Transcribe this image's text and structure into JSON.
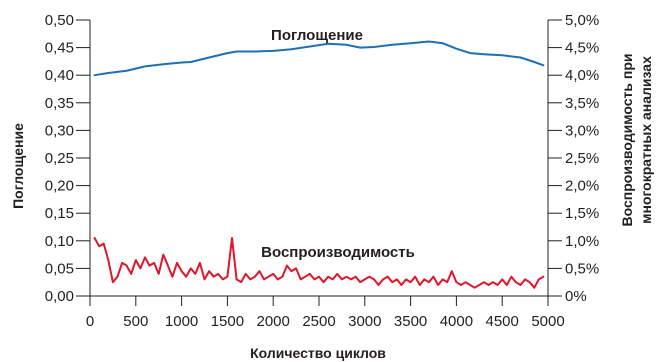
{
  "chart_data": {
    "type": "line",
    "xlabel": "Количество циклов",
    "ylabel_left": "Поглощение",
    "ylabel_right_lines": [
      "Воспроизводимость при",
      "многократных анализах"
    ],
    "xlim": [
      0,
      5000
    ],
    "ylim_left": [
      0,
      0.5
    ],
    "ylim_right": [
      0,
      5.0
    ],
    "x_ticks": [
      "0",
      "500",
      "1000",
      "1500",
      "2000",
      "2500",
      "3000",
      "3500",
      "4000",
      "4500",
      "5000"
    ],
    "y_ticks_left": [
      "0,00",
      "0,05",
      "0,10",
      "0,15",
      "0,20",
      "0,25",
      "0,30",
      "0,35",
      "0,40",
      "0,45",
      "0,50"
    ],
    "y_ticks_right": [
      "0%",
      "0,5%",
      "1,0%",
      "1,5%",
      "2,0%",
      "2,5%",
      "3,0%",
      "3,5%",
      "4,0%",
      "4,5%",
      "5,0%"
    ],
    "grid": false,
    "series": [
      {
        "name": "Поглощение",
        "axis": "left",
        "color": "#1f6fb5",
        "points": [
          [
            50,
            0.4
          ],
          [
            200,
            0.404
          ],
          [
            400,
            0.408
          ],
          [
            600,
            0.416
          ],
          [
            800,
            0.42
          ],
          [
            1000,
            0.423
          ],
          [
            1100,
            0.424
          ],
          [
            1300,
            0.432
          ],
          [
            1500,
            0.44
          ],
          [
            1600,
            0.443
          ],
          [
            1800,
            0.443
          ],
          [
            2000,
            0.444
          ],
          [
            2200,
            0.447
          ],
          [
            2400,
            0.452
          ],
          [
            2600,
            0.457
          ],
          [
            2800,
            0.455
          ],
          [
            2950,
            0.45
          ],
          [
            3100,
            0.451
          ],
          [
            3300,
            0.455
          ],
          [
            3500,
            0.458
          ],
          [
            3700,
            0.461
          ],
          [
            3850,
            0.458
          ],
          [
            4000,
            0.448
          ],
          [
            4150,
            0.44
          ],
          [
            4300,
            0.438
          ],
          [
            4500,
            0.436
          ],
          [
            4700,
            0.432
          ],
          [
            4850,
            0.424
          ],
          [
            4950,
            0.418
          ]
        ]
      },
      {
        "name": "Воспроизводимость",
        "axis": "right",
        "color": "#e0162b",
        "points": [
          [
            50,
            1.05
          ],
          [
            100,
            0.9
          ],
          [
            150,
            0.95
          ],
          [
            200,
            0.65
          ],
          [
            250,
            0.25
          ],
          [
            300,
            0.35
          ],
          [
            350,
            0.6
          ],
          [
            400,
            0.55
          ],
          [
            450,
            0.4
          ],
          [
            500,
            0.65
          ],
          [
            550,
            0.5
          ],
          [
            600,
            0.7
          ],
          [
            650,
            0.55
          ],
          [
            700,
            0.6
          ],
          [
            750,
            0.4
          ],
          [
            800,
            0.75
          ],
          [
            850,
            0.55
          ],
          [
            900,
            0.35
          ],
          [
            950,
            0.6
          ],
          [
            1000,
            0.45
          ],
          [
            1050,
            0.35
          ],
          [
            1100,
            0.5
          ],
          [
            1150,
            0.4
          ],
          [
            1200,
            0.6
          ],
          [
            1250,
            0.3
          ],
          [
            1300,
            0.45
          ],
          [
            1350,
            0.35
          ],
          [
            1400,
            0.4
          ],
          [
            1450,
            0.3
          ],
          [
            1500,
            0.35
          ],
          [
            1550,
            1.05
          ],
          [
            1600,
            0.3
          ],
          [
            1650,
            0.25
          ],
          [
            1700,
            0.4
          ],
          [
            1750,
            0.3
          ],
          [
            1800,
            0.35
          ],
          [
            1850,
            0.45
          ],
          [
            1900,
            0.3
          ],
          [
            1950,
            0.35
          ],
          [
            2000,
            0.4
          ],
          [
            2050,
            0.3
          ],
          [
            2100,
            0.35
          ],
          [
            2150,
            0.55
          ],
          [
            2200,
            0.45
          ],
          [
            2250,
            0.5
          ],
          [
            2300,
            0.3
          ],
          [
            2350,
            0.35
          ],
          [
            2400,
            0.4
          ],
          [
            2450,
            0.3
          ],
          [
            2500,
            0.35
          ],
          [
            2550,
            0.25
          ],
          [
            2600,
            0.35
          ],
          [
            2650,
            0.3
          ],
          [
            2700,
            0.4
          ],
          [
            2750,
            0.3
          ],
          [
            2800,
            0.35
          ],
          [
            2850,
            0.3
          ],
          [
            2900,
            0.35
          ],
          [
            2950,
            0.25
          ],
          [
            3000,
            0.3
          ],
          [
            3050,
            0.35
          ],
          [
            3100,
            0.3
          ],
          [
            3150,
            0.2
          ],
          [
            3200,
            0.3
          ],
          [
            3250,
            0.35
          ],
          [
            3300,
            0.25
          ],
          [
            3350,
            0.3
          ],
          [
            3400,
            0.2
          ],
          [
            3450,
            0.3
          ],
          [
            3500,
            0.25
          ],
          [
            3550,
            0.35
          ],
          [
            3600,
            0.2
          ],
          [
            3650,
            0.3
          ],
          [
            3700,
            0.25
          ],
          [
            3750,
            0.35
          ],
          [
            3800,
            0.2
          ],
          [
            3850,
            0.3
          ],
          [
            3900,
            0.25
          ],
          [
            3950,
            0.45
          ],
          [
            4000,
            0.25
          ],
          [
            4050,
            0.2
          ],
          [
            4100,
            0.25
          ],
          [
            4150,
            0.2
          ],
          [
            4200,
            0.15
          ],
          [
            4250,
            0.2
          ],
          [
            4300,
            0.25
          ],
          [
            4350,
            0.2
          ],
          [
            4400,
            0.25
          ],
          [
            4450,
            0.2
          ],
          [
            4500,
            0.3
          ],
          [
            4550,
            0.2
          ],
          [
            4600,
            0.35
          ],
          [
            4650,
            0.25
          ],
          [
            4700,
            0.2
          ],
          [
            4750,
            0.3
          ],
          [
            4800,
            0.25
          ],
          [
            4850,
            0.15
          ],
          [
            4900,
            0.3
          ],
          [
            4950,
            0.35
          ]
        ]
      }
    ],
    "annotations": {
      "absorbance_label": "Поглощение",
      "reproducibility_label": "Воспроизводимость"
    }
  }
}
